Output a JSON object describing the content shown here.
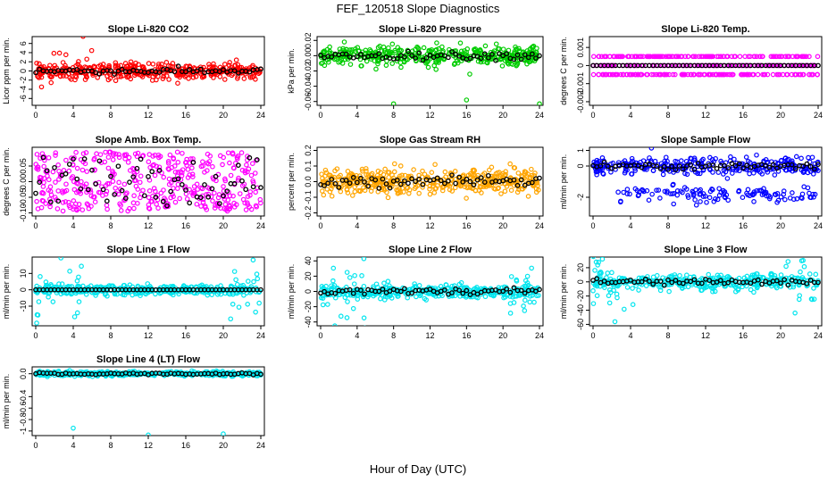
{
  "figure": {
    "title": "FEF_120518  Slope Diagnostics",
    "xlabel": "Hour of Day (UTC)"
  },
  "chart_data": [
    {
      "type": "scatter",
      "title": "Slope Li-820 CO2",
      "ylabel": "Licor ppm per min.",
      "xlim": [
        0,
        24
      ],
      "ylim": [
        -7.5,
        7.5
      ],
      "yticks": [
        -6,
        -4,
        -2,
        0,
        2,
        4,
        6
      ],
      "xticks": [
        0,
        4,
        8,
        12,
        16,
        20,
        24
      ],
      "color": "#ff0000",
      "center": 0,
      "spread": 0.8,
      "series": [
        {
          "values_summary": "dense scatter about 0, mostly between -2 and 2, outliers to about 7 and -7 between hours 1-5"
        },
        {
          "values_summary": "hourly average points near 0"
        }
      ]
    },
    {
      "type": "scatter",
      "title": "Slope Li-820 Pressure",
      "ylabel": "kPa per min.",
      "xlim": [
        0,
        24
      ],
      "ylim": [
        -0.065,
        0.025
      ],
      "yticks": [
        -0.06,
        -0.04,
        -0.02,
        0.0,
        0.02
      ],
      "xticks": [
        0,
        4,
        8,
        12,
        16,
        20,
        24
      ],
      "color": "#00cc00",
      "center": 0,
      "spread": 0.006,
      "series": [
        {
          "values_summary": "dense band between about -0.015 and 0.01, outliers near -0.063"
        },
        {
          "values_summary": "points near 0"
        }
      ]
    },
    {
      "type": "scatter",
      "title": "Slope Li-820 Temp.",
      "ylabel": "degrees C per min.",
      "xlim": [
        0,
        24
      ],
      "ylim": [
        -0.0022,
        0.0016
      ],
      "yticks": [
        -0.002,
        -0.001,
        0.0,
        0.001
      ],
      "xticks": [
        0,
        4,
        8,
        12,
        16,
        20,
        24
      ],
      "color": "#ff00ff",
      "center": 0,
      "spread": 0.0004,
      "series": [
        {
          "values_summary": "discrete levels at -0.0005, 0, 0.0005"
        },
        {
          "values_summary": "points near 0"
        }
      ]
    },
    {
      "type": "scatter",
      "title": "Slope Amb. Box Temp.",
      "ylabel": "degrees C per min.",
      "xlim": [
        0,
        24
      ],
      "ylim": [
        -0.11,
        0.11
      ],
      "yticks": [
        -0.1,
        -0.05,
        0.0,
        0.05
      ],
      "xticks": [
        0,
        4,
        8,
        12,
        16,
        20,
        24
      ],
      "color": "#ff00ff",
      "center": 0,
      "spread": 0.04,
      "series": [
        {
          "values_summary": "wide scatter between -0.1 and 0.1"
        },
        {
          "values_summary": "points scattered similarly"
        }
      ]
    },
    {
      "type": "scatter",
      "title": "Slope Gas Stream RH",
      "ylabel": "percent per min.",
      "xlim": [
        0,
        24
      ],
      "ylim": [
        -0.22,
        0.22
      ],
      "yticks": [
        -0.2,
        -0.1,
        0.0,
        0.1,
        0.2
      ],
      "xticks": [
        0,
        4,
        8,
        12,
        16,
        20,
        24
      ],
      "color": "#ffa500",
      "center": 0,
      "spread": 0.04,
      "series": [
        {
          "values_summary": "dense band between -0.1 and 0.1"
        },
        {
          "values_summary": "points near 0"
        }
      ]
    },
    {
      "type": "scatter",
      "title": "Slope Sample Flow",
      "ylabel": "ml/min per min.",
      "xlim": [
        0,
        24
      ],
      "ylim": [
        -3.2,
        1.2
      ],
      "yticks": [
        -2,
        0,
        1
      ],
      "xticks": [
        0,
        4,
        8,
        12,
        16,
        20,
        24
      ],
      "color": "#0000ff",
      "center": 0,
      "spread": 0.3,
      "series": [
        {
          "values_summary": "two bands, one near 0 and one near -1.8"
        },
        {
          "values_summary": "points near 0"
        }
      ]
    },
    {
      "type": "scatter",
      "title": "Slope Line 1 Flow",
      "ylabel": "ml/min per min.",
      "xlim": [
        0,
        24
      ],
      "ylim": [
        -22,
        20
      ],
      "yticks": [
        -10,
        0,
        10
      ],
      "xticks": [
        0,
        4,
        8,
        12,
        16,
        20,
        24
      ],
      "color": "#00e5ee",
      "center": 0,
      "spread": 1.5,
      "series": [
        {
          "values_summary": "band near 0 with spikes around hours 1-5 and 21-23"
        },
        {
          "values_summary": "points at 0"
        }
      ]
    },
    {
      "type": "scatter",
      "title": "Slope Line 2 Flow",
      "ylabel": "ml/min per min.",
      "xlim": [
        0,
        24
      ],
      "ylim": [
        -45,
        45
      ],
      "yticks": [
        -40,
        -20,
        0,
        20,
        40
      ],
      "xticks": [
        0,
        4,
        8,
        12,
        16,
        20,
        24
      ],
      "color": "#00e5ee",
      "center": 0,
      "spread": 4,
      "series": [
        {
          "values_summary": "band near 0 with spikes near hour 0 and 21-23"
        },
        {
          "values_summary": "points near 0"
        }
      ]
    },
    {
      "type": "scatter",
      "title": "Slope Line 3 Flow",
      "ylabel": "ml/min per min.",
      "xlim": [
        0,
        24
      ],
      "ylim": [
        -62,
        35
      ],
      "yticks": [
        -60,
        -40,
        -20,
        0,
        20
      ],
      "xticks": [
        0,
        4,
        8,
        12,
        16,
        20,
        24
      ],
      "color": "#00e5ee",
      "center": 0,
      "spread": 5,
      "series": [
        {
          "values_summary": "band near 0 with large scatter in hours 0-5"
        },
        {
          "values_summary": "points near 0"
        }
      ]
    },
    {
      "type": "scatter",
      "title": "Slope Line 4 (LT) Flow",
      "ylabel": "ml/min per min.",
      "xlim": [
        0,
        24
      ],
      "ylim": [
        -1.08,
        0.12
      ],
      "yticks": [
        -1.0,
        -0.8,
        -0.6,
        -0.4,
        0.0
      ],
      "xticks": [
        0,
        4,
        8,
        12,
        16,
        20,
        24
      ],
      "color": "#00e5ee",
      "center": 0,
      "spread": 0.02,
      "series": [
        {
          "values_summary": "tight band near 0 with outliers near -0.95 at hour 4 and -1.07 at hours 12 and 20"
        },
        {
          "values_summary": "points near 0"
        }
      ]
    }
  ]
}
